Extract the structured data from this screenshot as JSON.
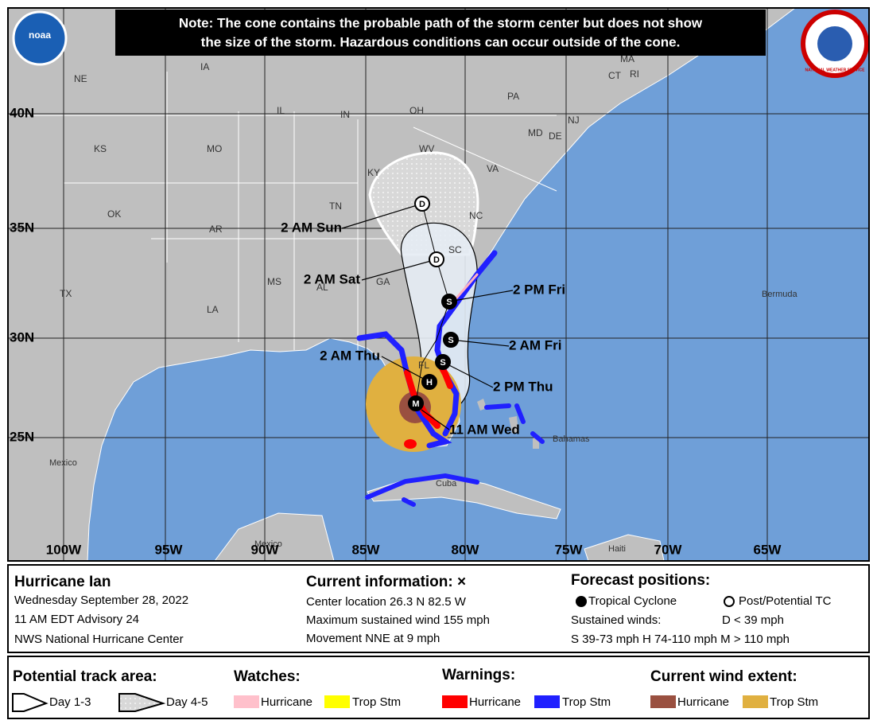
{
  "note": [
    "Note: The cone contains the probable path of the storm center but does not show",
    "the size of the storm. Hazardous conditions can occur outside of the cone."
  ],
  "logos": {
    "noaa": "noaa",
    "nws": "NATIONAL WEATHER SERVICE"
  },
  "map": {
    "lat_labels": [
      "40N",
      "35N",
      "30N",
      "25N"
    ],
    "lon_labels": [
      "100W",
      "95W",
      "90W",
      "85W",
      "80W",
      "75W",
      "70W",
      "65W"
    ],
    "state_labels": [
      "NE",
      "IA",
      "IL",
      "IN",
      "OH",
      "PA",
      "MA",
      "CT",
      "RI",
      "NJ",
      "MD",
      "DE",
      "KS",
      "MO",
      "WV",
      "VA",
      "KY",
      "TN",
      "NC",
      "OK",
      "AR",
      "SC",
      "MS",
      "AL",
      "GA",
      "TX",
      "LA",
      "FL"
    ],
    "place_labels": [
      "Bermuda",
      "Mexico",
      "Bahamas",
      "Cuba",
      "Haiti",
      "Mexico"
    ]
  },
  "forecast": {
    "points": [
      {
        "letter": "M",
        "time": "11 AM Wed"
      },
      {
        "letter": "H",
        "time": "2 AM Thu"
      },
      {
        "letter": "S",
        "time": "2 PM Thu"
      },
      {
        "letter": "S",
        "time": "2 AM Fri"
      },
      {
        "letter": "S",
        "time": "2 PM Fri"
      },
      {
        "letter": "D",
        "time": "2 AM Sat"
      },
      {
        "letter": "D",
        "time": "2 AM Sun"
      }
    ]
  },
  "info": {
    "storm": "Hurricane Ian",
    "lines": [
      "Wednesday September 28, 2022",
      "11 AM EDT Advisory 24",
      "NWS National Hurricane Center"
    ],
    "current_title": "Current information: ×",
    "current_lines": [
      "Center location 26.3 N 82.5 W",
      "Maximum sustained wind 155 mph",
      "Movement NNE at 9 mph"
    ],
    "forecast_title": "Forecast positions:",
    "tropical_cyclone": "Tropical Cyclone",
    "post_tc": "Post/Potential TC",
    "sustained": "Sustained winds:",
    "d_class": "D < 39 mph",
    "classes": "S 39-73 mph  H 74-110 mph  M > 110 mph"
  },
  "legend": {
    "track_title": "Potential track area:",
    "day13": "Day 1-3",
    "day45": "Day 4-5",
    "watches_title": "Watches:",
    "watch_hurricane": "Hurricane",
    "watch_ts": "Trop Stm",
    "warnings_title": "Warnings:",
    "warn_hurricane": "Hurricane",
    "warn_ts": "Trop Stm",
    "wind_title": "Current wind extent:",
    "wind_hurricane": "Hurricane",
    "wind_ts": "Trop Stm"
  }
}
